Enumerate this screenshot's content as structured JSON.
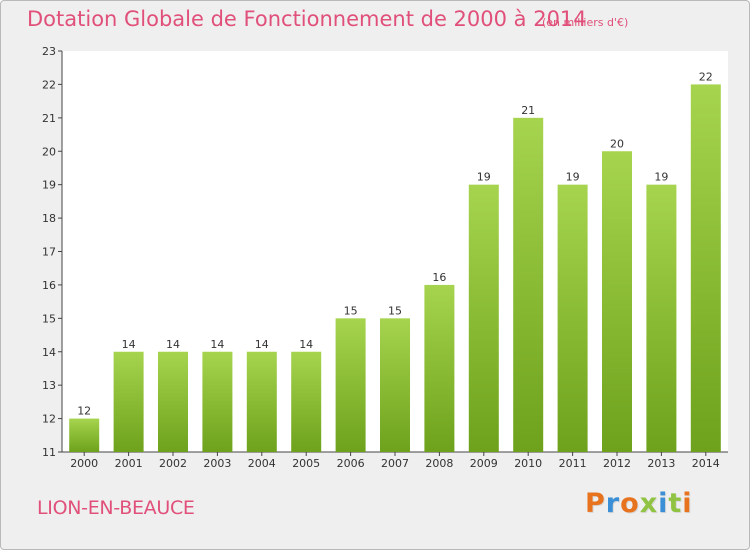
{
  "header": {
    "title": "Dotation Globale de Fonctionnement de 2000 à 2014",
    "subtitle": "(en milliers d'€)"
  },
  "footer": {
    "commune": "LION-EN-BEAUCE",
    "brand": "Proxiti",
    "brand_colors": [
      "#e8731e",
      "#3a8fd6",
      "#e8731e",
      "#8fc341",
      "#3a8fd6",
      "#8fc341",
      "#e8731e"
    ]
  },
  "colors": {
    "text_accent": "#e0507a",
    "bar_light": "#a6d44e",
    "bar_dark": "#6ea21c",
    "plot_bg": "#ffffff",
    "frame_bg": "#efefef"
  },
  "chart_data": {
    "type": "bar",
    "title": "Dotation Globale de Fonctionnement de 2000 à 2014",
    "subtitle": "(en milliers d'€)",
    "categories": [
      "2000",
      "2001",
      "2002",
      "2003",
      "2004",
      "2005",
      "2006",
      "2007",
      "2008",
      "2009",
      "2010",
      "2011",
      "2012",
      "2013",
      "2014"
    ],
    "values": [
      12,
      14,
      14,
      14,
      14,
      14,
      15,
      15,
      16,
      19,
      21,
      19,
      20,
      19,
      22
    ],
    "xlabel": "",
    "ylabel": "",
    "ylim": [
      11,
      23
    ],
    "yticks": [
      11,
      12,
      13,
      14,
      15,
      16,
      17,
      18,
      19,
      20,
      21,
      22,
      23
    ],
    "grid": false,
    "data_labels": true
  }
}
